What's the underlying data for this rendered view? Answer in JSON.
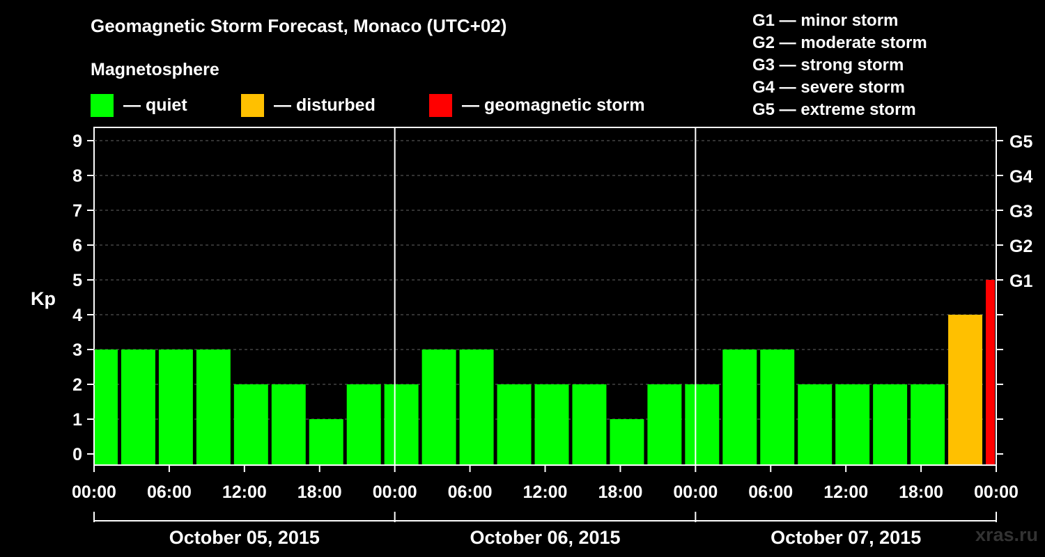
{
  "title": "Geomagnetic Storm Forecast, Monaco (UTC+02)",
  "subtitle": "Magnetosphere",
  "legend": [
    {
      "label": "— quiet",
      "color": "#00ff00"
    },
    {
      "label": "— disturbed",
      "color": "#ffc000"
    },
    {
      "label": "— geomagnetic storm",
      "color": "#ff0000"
    }
  ],
  "g_legend": [
    "G1 — minor storm",
    "G2 — moderate storm",
    "G3 — strong storm",
    "G4 — severe storm",
    "G5 — extreme storm"
  ],
  "watermark": "xras.ru",
  "chart_data": {
    "type": "bar",
    "ylabel": "Kp",
    "ylim": [
      0,
      9
    ],
    "yticks": [
      0,
      1,
      2,
      3,
      4,
      5,
      6,
      7,
      8,
      9
    ],
    "g_scale_ticks": [
      {
        "kp": 5,
        "label": "G1"
      },
      {
        "kp": 6,
        "label": "G2"
      },
      {
        "kp": 7,
        "label": "G3"
      },
      {
        "kp": 8,
        "label": "G4"
      },
      {
        "kp": 9,
        "label": "G5"
      }
    ],
    "grid": "horizontal dashed",
    "xlim_hours": [
      0,
      72
    ],
    "xtick_labels": [
      "00:00",
      "06:00",
      "12:00",
      "18:00",
      "00:00",
      "06:00",
      "12:00",
      "18:00",
      "00:00",
      "06:00",
      "12:00",
      "18:00",
      "00:00"
    ],
    "days": [
      "October 05, 2015",
      "October 06, 2015",
      "October 07, 2015"
    ],
    "bars": [
      {
        "start": 0,
        "end": 2,
        "kp": 3,
        "level": "quiet"
      },
      {
        "start": 2,
        "end": 5,
        "kp": 3,
        "level": "quiet"
      },
      {
        "start": 5,
        "end": 8,
        "kp": 3,
        "level": "quiet"
      },
      {
        "start": 8,
        "end": 11,
        "kp": 3,
        "level": "quiet"
      },
      {
        "start": 11,
        "end": 14,
        "kp": 2,
        "level": "quiet"
      },
      {
        "start": 14,
        "end": 17,
        "kp": 2,
        "level": "quiet"
      },
      {
        "start": 17,
        "end": 20,
        "kp": 1,
        "level": "quiet"
      },
      {
        "start": 20,
        "end": 23,
        "kp": 2,
        "level": "quiet"
      },
      {
        "start": 23,
        "end": 26,
        "kp": 2,
        "level": "quiet"
      },
      {
        "start": 26,
        "end": 29,
        "kp": 3,
        "level": "quiet"
      },
      {
        "start": 29,
        "end": 32,
        "kp": 3,
        "level": "quiet"
      },
      {
        "start": 32,
        "end": 35,
        "kp": 2,
        "level": "quiet"
      },
      {
        "start": 35,
        "end": 38,
        "kp": 2,
        "level": "quiet"
      },
      {
        "start": 38,
        "end": 41,
        "kp": 2,
        "level": "quiet"
      },
      {
        "start": 41,
        "end": 44,
        "kp": 1,
        "level": "quiet"
      },
      {
        "start": 44,
        "end": 47,
        "kp": 2,
        "level": "quiet"
      },
      {
        "start": 47,
        "end": 50,
        "kp": 2,
        "level": "quiet"
      },
      {
        "start": 50,
        "end": 53,
        "kp": 3,
        "level": "quiet"
      },
      {
        "start": 53,
        "end": 56,
        "kp": 3,
        "level": "quiet"
      },
      {
        "start": 56,
        "end": 59,
        "kp": 2,
        "level": "quiet"
      },
      {
        "start": 59,
        "end": 62,
        "kp": 2,
        "level": "quiet"
      },
      {
        "start": 62,
        "end": 65,
        "kp": 2,
        "level": "quiet"
      },
      {
        "start": 65,
        "end": 68,
        "kp": 2,
        "level": "quiet"
      },
      {
        "start": 68,
        "end": 71,
        "kp": 4,
        "level": "disturbed"
      },
      {
        "start": 71,
        "end": 72,
        "kp": 5,
        "level": "storm"
      }
    ],
    "level_colors": {
      "quiet": "#00ff00",
      "disturbed": "#ffc000",
      "storm": "#ff0000"
    }
  }
}
